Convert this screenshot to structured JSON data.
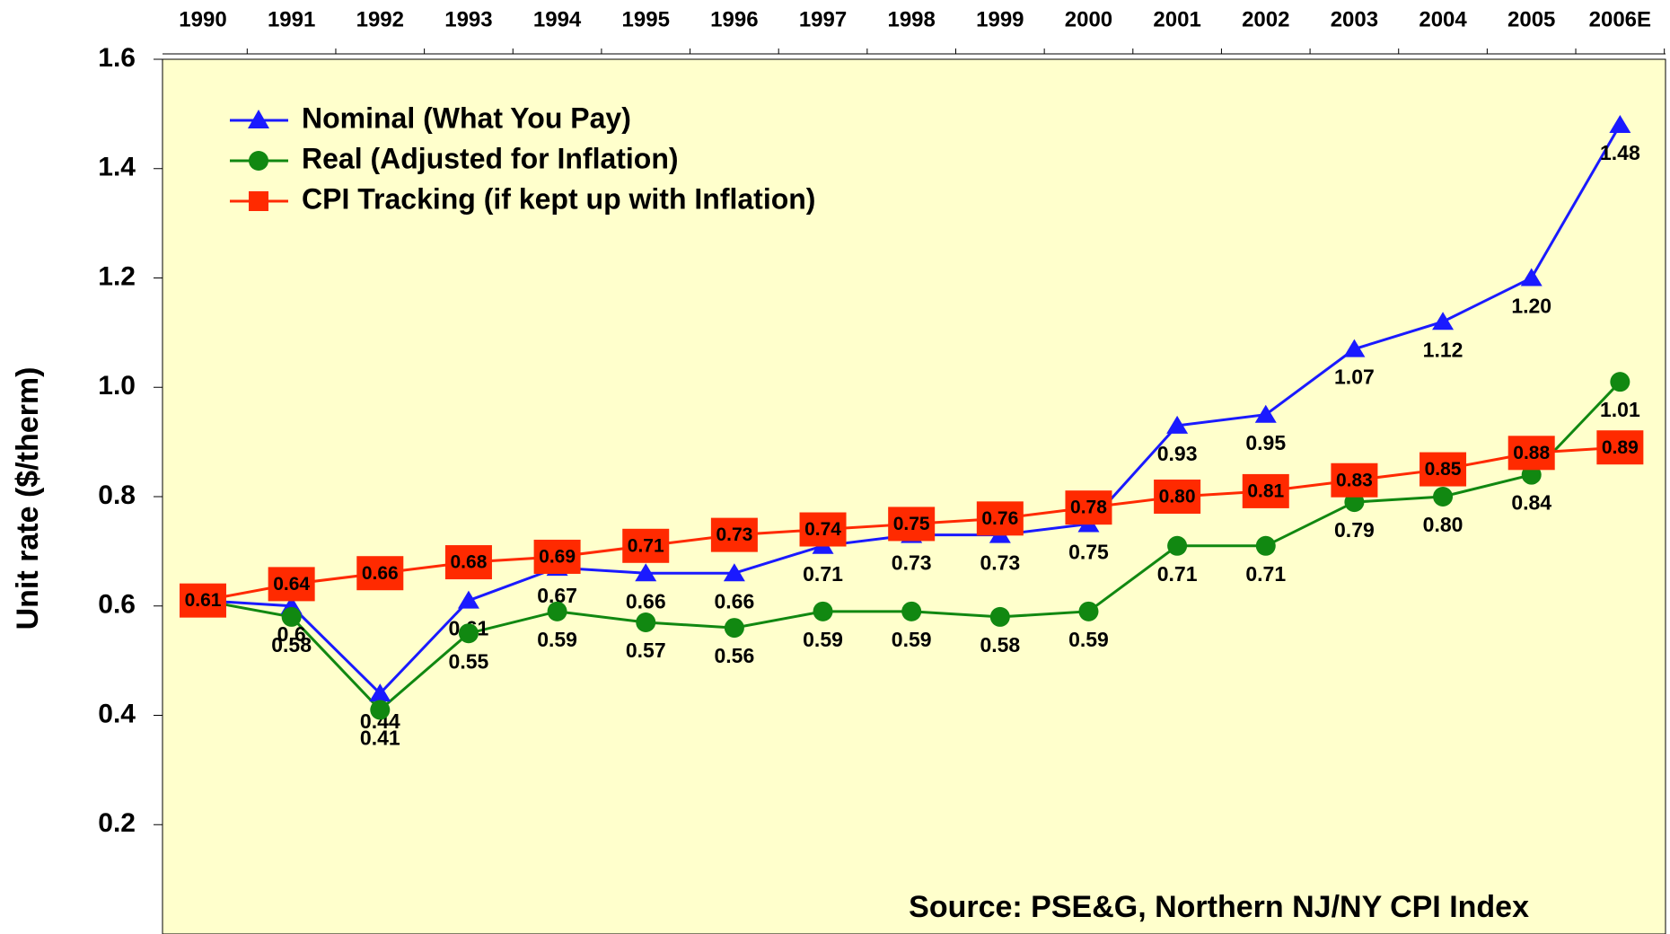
{
  "chart_data": {
    "type": "line",
    "y_label": "Unit rate ($/therm)",
    "annotation": "Source: PSE&G, Northern NJ/NY CPI Index",
    "categories": [
      "1990",
      "1991",
      "1992",
      "1993",
      "1994",
      "1995",
      "1996",
      "1997",
      "1998",
      "1999",
      "2000",
      "2001",
      "2002",
      "2003",
      "2004",
      "2005",
      "2006E"
    ],
    "ylim": [
      0,
      1.6
    ],
    "yticks": [
      0.2,
      0.4,
      0.6,
      0.8,
      {
        "value": 1,
        "label": "1.0"
      },
      1.2,
      1.4,
      1.6
    ],
    "legend": "top-left",
    "background": "#ffffcc",
    "series": [
      {
        "name": "Nominal (What You Pay)",
        "color": "#1a1aff",
        "marker": "triangle",
        "values": [
          0.61,
          0.6,
          0.44,
          0.61,
          0.67,
          0.66,
          0.66,
          0.71,
          0.73,
          0.73,
          0.75,
          0.93,
          0.95,
          1.07,
          1.12,
          1.2,
          1.48
        ],
        "value_labels": [
          null,
          "0.6",
          "0.44",
          "0.61",
          "0.67",
          "0.66",
          "0.66",
          "0.71",
          "0.73",
          "0.73",
          "0.75",
          "0.93",
          "0.95",
          "1.07",
          "1.12",
          "1.20",
          "1.48"
        ]
      },
      {
        "name": "Real (Adjusted for Inflation)",
        "color": "#118811",
        "marker": "circle",
        "values": [
          0.61,
          0.58,
          0.41,
          0.55,
          0.59,
          0.57,
          0.56,
          0.59,
          0.59,
          0.58,
          0.59,
          0.71,
          0.71,
          0.79,
          0.8,
          0.84,
          1.01
        ],
        "value_labels": [
          null,
          "0.58",
          "0.41",
          "0.55",
          "0.59",
          "0.57",
          "0.56",
          "0.59",
          "0.59",
          "0.58",
          "0.59",
          "0.71",
          "0.71",
          "0.79",
          "0.80",
          "0.84",
          "1.01"
        ]
      },
      {
        "name": "CPI Tracking (if kept up with Inflation)",
        "color": "#ff2a00",
        "marker": "square",
        "values": [
          0.61,
          0.64,
          0.66,
          0.68,
          0.69,
          0.71,
          0.73,
          0.74,
          0.75,
          0.76,
          0.78,
          0.8,
          0.81,
          0.83,
          0.85,
          0.88,
          0.89
        ],
        "value_labels": [
          "0.61",
          "0.64",
          "0.66",
          "0.68",
          "0.69",
          "0.71",
          "0.73",
          "0.74",
          "0.75",
          "0.76",
          "0.78",
          "0.80",
          "0.81",
          "0.83",
          "0.85",
          "0.88",
          "0.89"
        ]
      }
    ]
  }
}
